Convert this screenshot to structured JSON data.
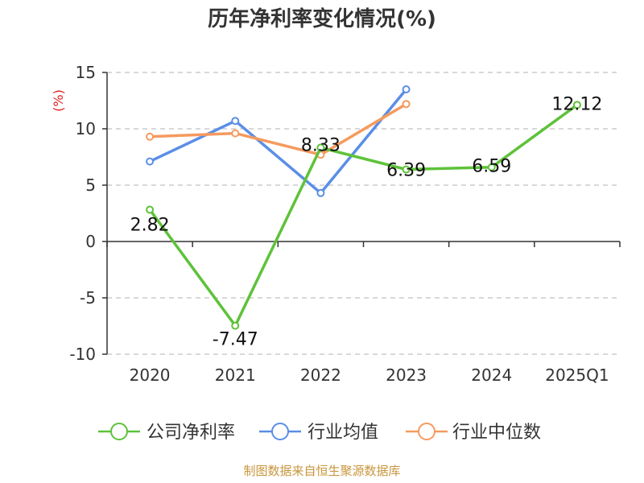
{
  "chart_data": {
    "type": "line",
    "title": "历年净利率变化情况(%)",
    "ylabel": "(%)",
    "xlabel": "",
    "categories": [
      "2020",
      "2021",
      "2022",
      "2023",
      "2024",
      "2025Q1"
    ],
    "ylim": [
      -10,
      15
    ],
    "yticks": [
      15,
      10,
      5,
      0,
      -5,
      -10
    ],
    "grid": true,
    "legend_position": "bottom",
    "series": [
      {
        "name": "公司净利率",
        "color": "#5ec23a",
        "values": [
          2.82,
          -7.47,
          8.33,
          6.39,
          6.59,
          12.12
        ],
        "show_labels": true
      },
      {
        "name": "行业均值",
        "color": "#5b8ee6",
        "values": [
          7.1,
          10.7,
          4.3,
          13.5,
          null,
          null
        ],
        "show_labels": false
      },
      {
        "name": "行业中位数",
        "color": "#f59a5f",
        "values": [
          9.3,
          9.6,
          7.7,
          12.2,
          null,
          null
        ],
        "show_labels": false
      }
    ],
    "data_labels": [
      "2.82",
      "-7.47",
      "8.33",
      "6.39",
      "6.59",
      "12.12"
    ]
  },
  "footer": {
    "source": "制图数据来自恒生聚源数据库"
  }
}
